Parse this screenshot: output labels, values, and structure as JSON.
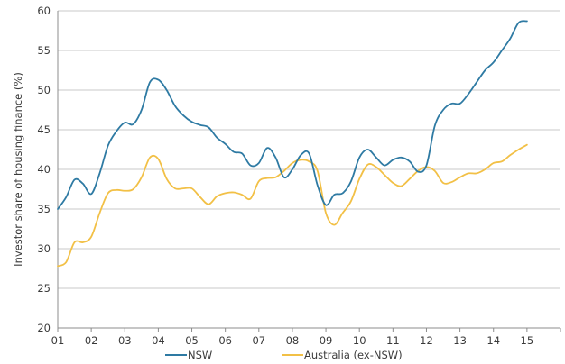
{
  "chart_data": {
    "type": "line",
    "title": "",
    "xlabel": "",
    "ylabel": "Investor share of housing finance (%)",
    "ylim": [
      20,
      60
    ],
    "yticks": [
      20,
      25,
      30,
      35,
      40,
      45,
      50,
      55,
      60
    ],
    "xlim": [
      1,
      16
    ],
    "xtick_labels": [
      "01",
      "02",
      "03",
      "04",
      "05",
      "06",
      "07",
      "08",
      "09",
      "10",
      "11",
      "12",
      "13",
      "14",
      "15"
    ],
    "grid": true,
    "legend_position": "bottom",
    "series": [
      {
        "name": "NSW",
        "color": "#2e7aa3",
        "x": [
          1.0,
          1.25,
          1.5,
          1.75,
          2.0,
          2.25,
          2.5,
          2.75,
          3.0,
          3.25,
          3.5,
          3.75,
          4.0,
          4.25,
          4.5,
          4.75,
          5.0,
          5.25,
          5.5,
          5.75,
          6.0,
          6.25,
          6.5,
          6.75,
          7.0,
          7.25,
          7.5,
          7.75,
          8.0,
          8.25,
          8.5,
          8.75,
          9.0,
          9.25,
          9.5,
          9.75,
          10.0,
          10.25,
          10.5,
          10.75,
          11.0,
          11.25,
          11.5,
          11.75,
          12.0,
          12.25,
          12.5,
          12.75,
          13.0,
          13.25,
          13.5,
          13.75,
          14.0,
          14.25,
          14.5,
          14.75,
          15.0
        ],
        "values": [
          35.0,
          36.5,
          38.7,
          38.2,
          36.9,
          39.5,
          43.0,
          44.8,
          45.9,
          45.7,
          47.5,
          51.0,
          51.3,
          50.0,
          48.0,
          46.8,
          46.0,
          45.6,
          45.3,
          44.0,
          43.2,
          42.2,
          42.0,
          40.5,
          40.8,
          42.7,
          41.5,
          39.0,
          40.0,
          41.8,
          42.0,
          38.0,
          35.5,
          36.8,
          37.0,
          38.5,
          41.5,
          42.5,
          41.5,
          40.5,
          41.2,
          41.5,
          41.0,
          39.7,
          40.5,
          45.5,
          47.5,
          48.3,
          48.3,
          49.5,
          51.0,
          52.5,
          53.5,
          55.0,
          56.5,
          58.5,
          58.7
        ]
      },
      {
        "name": "Australia (ex-NSW)",
        "color": "#f2c046",
        "x": [
          1.0,
          1.25,
          1.5,
          1.75,
          2.0,
          2.25,
          2.5,
          2.75,
          3.0,
          3.25,
          3.5,
          3.75,
          4.0,
          4.25,
          4.5,
          4.75,
          5.0,
          5.25,
          5.5,
          5.75,
          6.0,
          6.25,
          6.5,
          6.75,
          7.0,
          7.25,
          7.5,
          7.75,
          8.0,
          8.25,
          8.5,
          8.75,
          9.0,
          9.25,
          9.5,
          9.75,
          10.0,
          10.25,
          10.5,
          10.75,
          11.0,
          11.25,
          11.5,
          11.75,
          12.0,
          12.25,
          12.5,
          12.75,
          13.0,
          13.25,
          13.5,
          13.75,
          14.0,
          14.25,
          14.5,
          14.75,
          15.0
        ],
        "values": [
          27.8,
          28.3,
          30.8,
          30.8,
          31.5,
          34.5,
          37.0,
          37.4,
          37.3,
          37.5,
          39.0,
          41.5,
          41.3,
          38.8,
          37.6,
          37.6,
          37.6,
          36.5,
          35.6,
          36.6,
          37.0,
          37.1,
          36.8,
          36.3,
          38.5,
          38.9,
          39.0,
          39.8,
          40.8,
          41.2,
          41.0,
          39.8,
          34.5,
          33.0,
          34.5,
          36.0,
          38.8,
          40.6,
          40.3,
          39.3,
          38.3,
          37.9,
          38.8,
          39.8,
          40.3,
          39.8,
          38.3,
          38.4,
          39.0,
          39.5,
          39.5,
          40.0,
          40.8,
          41.0,
          41.8,
          42.5,
          43.1
        ]
      }
    ]
  }
}
